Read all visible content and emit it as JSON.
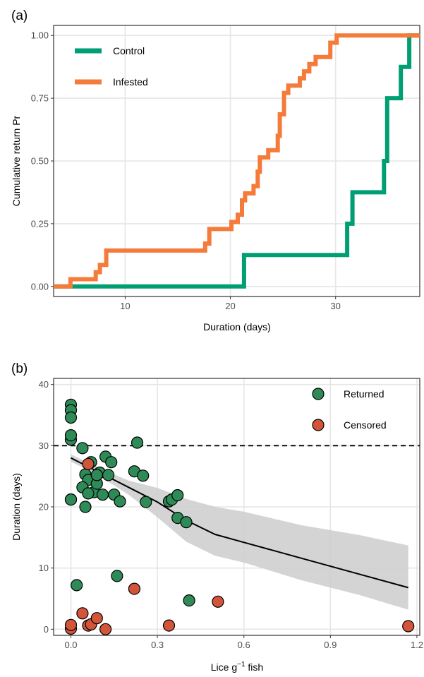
{
  "chart_data": [
    {
      "panel_label": "(a)",
      "type": "line",
      "step": true,
      "xlabel": "Duration (days)",
      "ylabel": "Cumulative return Pr",
      "xlim": [
        3.2,
        38
      ],
      "ylim": [
        -0.04,
        1.04
      ],
      "xticks": [
        10,
        20,
        30
      ],
      "yticks": [
        0,
        0.25,
        0.5,
        0.75,
        1
      ],
      "ytick_labels": [
        "0.00",
        "0.25",
        "0.50",
        "0.75",
        "1.00"
      ],
      "grid": true,
      "legend_position": "top-left",
      "series": [
        {
          "name": "Control",
          "color": "#009E73",
          "x": [
            3.2,
            21.3,
            21.3,
            31.1,
            31.1,
            31.6,
            31.6,
            34.6,
            34.6,
            34.9,
            34.9,
            36.2,
            36.2,
            37.0,
            37.0,
            38.0
          ],
          "y": [
            0,
            0,
            0.125,
            0.125,
            0.25,
            0.25,
            0.375,
            0.375,
            0.5,
            0.5,
            0.75,
            0.75,
            0.875,
            0.875,
            1.0,
            1.0
          ]
        },
        {
          "name": "Infested",
          "color": "#F47B3A",
          "x": [
            3.2,
            4.8,
            4.8,
            7.2,
            7.2,
            7.6,
            7.6,
            8.2,
            8.2,
            17.6,
            17.6,
            18.0,
            18.0,
            20.1,
            20.1,
            20.7,
            20.7,
            21.1,
            21.1,
            21.4,
            21.4,
            22.2,
            22.2,
            22.6,
            22.6,
            22.8,
            22.8,
            23.6,
            23.6,
            24.5,
            24.5,
            24.7,
            24.7,
            25.1,
            25.1,
            25.5,
            25.5,
            26.6,
            26.6,
            27.0,
            27.0,
            27.5,
            27.5,
            28.1,
            28.1,
            29.5,
            29.5,
            30.1,
            30.1,
            38.0
          ],
          "y": [
            0,
            0,
            0.029,
            0.029,
            0.057,
            0.057,
            0.086,
            0.086,
            0.143,
            0.143,
            0.171,
            0.171,
            0.229,
            0.229,
            0.257,
            0.257,
            0.286,
            0.286,
            0.343,
            0.343,
            0.371,
            0.371,
            0.4,
            0.4,
            0.457,
            0.457,
            0.514,
            0.514,
            0.543,
            0.543,
            0.6,
            0.6,
            0.686,
            0.686,
            0.771,
            0.771,
            0.8,
            0.8,
            0.829,
            0.829,
            0.857,
            0.857,
            0.886,
            0.886,
            0.914,
            0.914,
            0.971,
            0.971,
            1.0,
            1.0
          ]
        }
      ]
    },
    {
      "panel_label": "(b)",
      "type": "scatter",
      "xlabel": "Lice g",
      "xlabel_superscript": "−1",
      "xlabel_suffix": " fish",
      "ylabel": "Duration (days)",
      "xlim": [
        -0.06,
        1.21
      ],
      "ylim": [
        -1,
        41
      ],
      "xticks": [
        0,
        0.3,
        0.6,
        0.9,
        1.2
      ],
      "xtick_labels": [
        "0.0",
        "0.3",
        "0.6",
        "0.9",
        "1.2"
      ],
      "yticks": [
        0,
        10,
        20,
        30,
        40
      ],
      "ytick_labels": [
        "0",
        "10",
        "20",
        "30",
        "40"
      ],
      "grid": true,
      "legend_position": "top-right",
      "reference_line_y": 30,
      "fit_line": {
        "x": [
          0,
          0.1,
          0.2,
          0.3,
          0.4,
          0.5,
          0.6,
          0.8,
          1.0,
          1.17
        ],
        "y": [
          28,
          25.6,
          23.2,
          20.8,
          17.8,
          15.5,
          14.2,
          11.6,
          9.0,
          6.8
        ]
      },
      "confidence_band": {
        "x": [
          0,
          0.1,
          0.2,
          0.3,
          0.4,
          0.5,
          0.6,
          0.8,
          1.0,
          1.17
        ],
        "lower": [
          27.4,
          25.0,
          22.0,
          18.3,
          14.3,
          12.0,
          10.9,
          8.0,
          5.6,
          3.2
        ],
        "upper": [
          28.6,
          26.3,
          24.3,
          23.1,
          21.3,
          20.0,
          19.2,
          17.0,
          15.4,
          13.7
        ]
      },
      "series": [
        {
          "name": "Returned",
          "color": "#2E8B57",
          "x": [
            0,
            0,
            0,
            0,
            0,
            0.02,
            0.04,
            0.05,
            0.06,
            0.07,
            0.08,
            0.09,
            0.1,
            0.11,
            0.12,
            0.13,
            0.14,
            0.15,
            0.16,
            0.17,
            0.04,
            0.05,
            0.06,
            0.09,
            0.22,
            0.23,
            0.25,
            0.26,
            0.34,
            0.35,
            0.37,
            0.37,
            0.4,
            0.41,
            0,
            0
          ],
          "y": [
            36.7,
            35.8,
            34.6,
            31.0,
            21.2,
            7.2,
            29.6,
            25.3,
            24.4,
            27.3,
            22.4,
            23.8,
            25.6,
            22.0,
            28.2,
            25.2,
            27.3,
            22.0,
            8.7,
            20.9,
            23.2,
            20.0,
            22.2,
            25.2,
            25.8,
            30.5,
            25.1,
            20.8,
            20.9,
            21.2,
            21.9,
            18.2,
            17.5,
            4.7,
            31.7,
            21.2
          ]
        },
        {
          "name": "Censored",
          "color": "#D2553A",
          "x": [
            0,
            0,
            0.04,
            0.06,
            0.07,
            0.09,
            0.12,
            0.22,
            0.34,
            0.51,
            1.17,
            0.06
          ],
          "y": [
            0.1,
            0.7,
            2.6,
            0.6,
            0.8,
            1.8,
            0.0,
            6.6,
            0.6,
            4.5,
            0.5,
            27.0
          ]
        }
      ]
    }
  ]
}
